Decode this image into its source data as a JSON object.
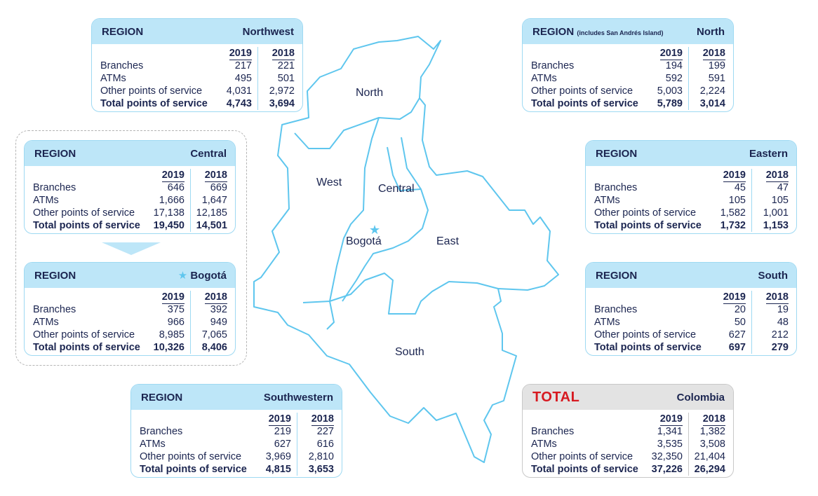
{
  "row_labels": {
    "branches": "Branches",
    "atms": "ATMs",
    "other": "Other points of service",
    "total": "Total points of service"
  },
  "year_labels": {
    "y2019": "2019",
    "y2018": "2018"
  },
  "map_labels": {
    "north": "North",
    "west": "West",
    "central": "Central",
    "bogota": "Bogotá",
    "east": "East",
    "south": "South"
  },
  "colors": {
    "accent": "#5ec6ee",
    "header": "#bde6f8",
    "total_label": "#d71920",
    "text": "#1b2550"
  },
  "regions": {
    "northwest": {
      "label": "REGION",
      "name": "Northwest",
      "branches": [
        "217",
        "221"
      ],
      "atms": [
        "495",
        "501"
      ],
      "other": [
        "4,031",
        "2,972"
      ],
      "total": [
        "4,743",
        "3,694"
      ]
    },
    "north": {
      "label": "REGION",
      "note": "(includes San Andrés Island)",
      "name": "North",
      "branches": [
        "194",
        "199"
      ],
      "atms": [
        "592",
        "591"
      ],
      "other": [
        "5,003",
        "2,224"
      ],
      "total": [
        "5,789",
        "3,014"
      ]
    },
    "central": {
      "label": "REGION",
      "name": "Central",
      "branches": [
        "646",
        "669"
      ],
      "atms": [
        "1,666",
        "1,647"
      ],
      "other": [
        "17,138",
        "12,185"
      ],
      "total": [
        "19,450",
        "14,501"
      ]
    },
    "eastern": {
      "label": "REGION",
      "name": "Eastern",
      "branches": [
        "45",
        "47"
      ],
      "atms": [
        "105",
        "105"
      ],
      "other": [
        "1,582",
        "1,001"
      ],
      "total": [
        "1,732",
        "1,153"
      ]
    },
    "bogota": {
      "label": "REGION",
      "name": "Bogotá",
      "branches": [
        "375",
        "392"
      ],
      "atms": [
        "966",
        "949"
      ],
      "other": [
        "8,985",
        "7,065"
      ],
      "total": [
        "10,326",
        "8,406"
      ]
    },
    "south": {
      "label": "REGION",
      "name": "South",
      "branches": [
        "20",
        "19"
      ],
      "atms": [
        "50",
        "48"
      ],
      "other": [
        "627",
        "212"
      ],
      "total": [
        "697",
        "279"
      ]
    },
    "southwestern": {
      "label": "REGION",
      "name": "Southwestern",
      "branches": [
        "219",
        "227"
      ],
      "atms": [
        "627",
        "616"
      ],
      "other": [
        "3,969",
        "2,810"
      ],
      "total": [
        "4,815",
        "3,653"
      ]
    },
    "total": {
      "label": "TOTAL",
      "name": "Colombia",
      "branches": [
        "1,341",
        "1,382"
      ],
      "atms": [
        "3,535",
        "3,508"
      ],
      "other": [
        "32,350",
        "21,404"
      ],
      "total": [
        "37,226",
        "26,294"
      ]
    }
  }
}
